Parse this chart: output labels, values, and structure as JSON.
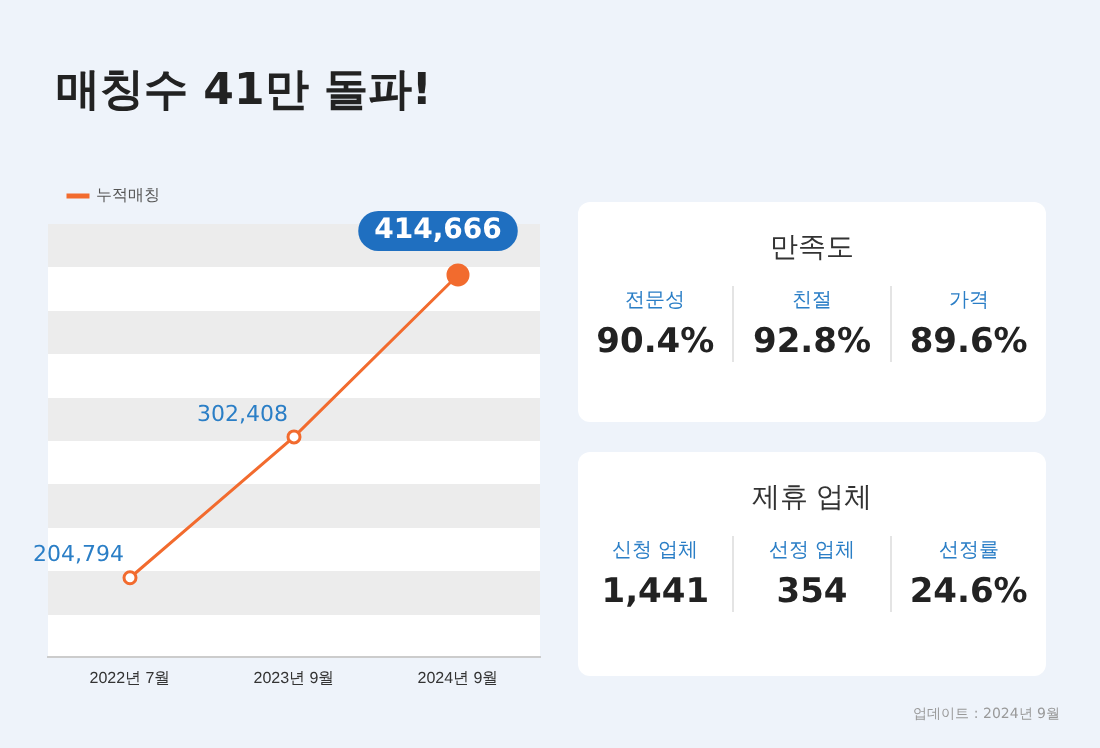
{
  "chart_data": [
    {
      "type": "line",
      "title": "매칭수 41만 돌파!",
      "categories": [
        "2022년 7월",
        "2023년 9월",
        "2024년 9월"
      ],
      "series": [
        {
          "name": "누적매칭",
          "color": "#f26b2e",
          "values": [
            204794,
            302408,
            414666
          ],
          "value_labels": [
            "204,794",
            "302,408",
            "414,666"
          ]
        }
      ],
      "legend": "top left",
      "marker": "circle"
    },
    {
      "type": "other",
      "title": "만족도",
      "categories": [
        "전문성",
        "친절",
        "가격"
      ],
      "value_labels": [
        "90.4%",
        "92.8%",
        "89.6%"
      ]
    },
    {
      "type": "other",
      "title": "제휴 업체",
      "categories": [
        "신청 업체",
        "선정 업체",
        "선정률"
      ],
      "value_labels": [
        "1,441",
        "354",
        "24.6%"
      ],
      "annotations": [
        "업데이트 : 2024년 9월"
      ]
    }
  ]
}
